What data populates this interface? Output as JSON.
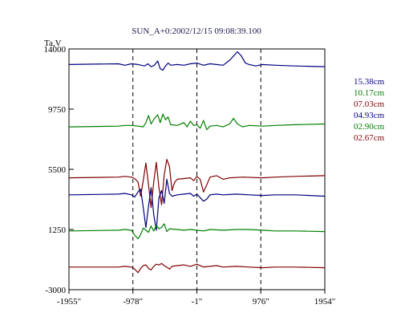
{
  "chart_data": {
    "type": "line",
    "title": "SUN_A+0:2002/12/15 09:08:39.100",
    "ylabel": "Ta,V",
    "xticks": [
      "-1955\"",
      "-978\"",
      "-1\"",
      "976\"",
      "1954\""
    ],
    "xtick_values": [
      -1955,
      -978,
      -1,
      976,
      1954
    ],
    "yticks": [
      "14000",
      "9750",
      "5500",
      "1250",
      "-3000"
    ],
    "ytick_values": [
      14000,
      9750,
      5500,
      1250,
      -3000
    ],
    "xlim": [
      -1955,
      1954
    ],
    "ylim": [
      -3000,
      14000
    ],
    "grid": "dashed vertical lines at -978, -1, 976",
    "legend_position": "right",
    "series": [
      {
        "name": "15.38cm",
        "color": "#00007f",
        "baseline": 12900,
        "x": [
          -1955,
          -1200,
          -1100,
          -1000,
          -900,
          -800,
          -750,
          -700,
          -650,
          -600,
          -560,
          -520,
          -480,
          -440,
          -400,
          -300,
          -200,
          -100,
          0,
          100,
          200,
          300,
          400,
          500,
          560,
          620,
          680,
          740,
          800,
          900,
          1000,
          1200,
          1500,
          1954
        ],
        "y": [
          12900,
          12950,
          12850,
          12950,
          12900,
          12800,
          12950,
          12750,
          12850,
          13150,
          12600,
          12500,
          12800,
          13000,
          12850,
          12900,
          12850,
          12950,
          13000,
          12850,
          12950,
          12900,
          12850,
          13200,
          13500,
          13800,
          13500,
          13000,
          12900,
          12800,
          12900,
          12850,
          12800,
          12750
        ]
      },
      {
        "name": "10.17cm",
        "color": "#007f00",
        "baseline": 8600,
        "x": [
          -1955,
          -1200,
          -1100,
          -1000,
          -900,
          -820,
          -780,
          -740,
          -700,
          -650,
          -600,
          -560,
          -520,
          -480,
          -440,
          -400,
          -300,
          -200,
          -150,
          -100,
          -50,
          0,
          50,
          100,
          150,
          200,
          300,
          400,
          500,
          560,
          620,
          700,
          800,
          1000,
          1200,
          1500,
          1954
        ],
        "y": [
          8500,
          8550,
          8600,
          8600,
          8550,
          8500,
          8800,
          9300,
          8700,
          9100,
          9350,
          8800,
          9400,
          9000,
          9200,
          8650,
          8600,
          8800,
          8500,
          8900,
          8600,
          8650,
          8400,
          8950,
          8300,
          8550,
          8600,
          8500,
          8700,
          9100,
          8700,
          8500,
          8600,
          8550,
          8600,
          8650,
          8700
        ]
      },
      {
        "name": "07.03cm",
        "color": "#7f0000",
        "baseline": 4950,
        "x": [
          -1955,
          -1200,
          -1100,
          -1000,
          -950,
          -900,
          -860,
          -820,
          -780,
          -740,
          -700,
          -660,
          -620,
          -580,
          -540,
          -500,
          -460,
          -420,
          -380,
          -340,
          -300,
          -200,
          -100,
          -50,
          0,
          50,
          100,
          150,
          200,
          300,
          400,
          500,
          700,
          1000,
          1200,
          1500,
          1954
        ],
        "y": [
          4900,
          4950,
          5000,
          4950,
          4850,
          4600,
          3600,
          4700,
          5950,
          4400,
          2800,
          4600,
          6000,
          4200,
          3000,
          5100,
          6200,
          5700,
          4000,
          4600,
          4800,
          4850,
          4900,
          4700,
          5000,
          4800,
          3900,
          4400,
          4950,
          5050,
          4800,
          4900,
          4950,
          4900,
          4950,
          5000,
          5050
        ]
      },
      {
        "name": "04.93cm",
        "color": "#00007f",
        "baseline": 3750,
        "x": [
          -1955,
          -1200,
          -1100,
          -1000,
          -950,
          -900,
          -860,
          -820,
          -780,
          -740,
          -700,
          -660,
          -620,
          -580,
          -540,
          -500,
          -460,
          -420,
          -380,
          -300,
          -200,
          -100,
          -50,
          0,
          50,
          100,
          150,
          200,
          300,
          400,
          600,
          800,
          1000,
          1200,
          1500,
          1954
        ],
        "y": [
          3700,
          3750,
          3800,
          3700,
          3550,
          3900,
          4100,
          2800,
          1400,
          2900,
          4200,
          2300,
          1200,
          3500,
          4000,
          3100,
          4800,
          3800,
          3600,
          3700,
          3750,
          3800,
          3600,
          3750,
          3500,
          3250,
          3400,
          3700,
          3750,
          3700,
          3750,
          3700,
          3650,
          3700,
          3700,
          3600
        ]
      },
      {
        "name": "02.90cm",
        "color": "#007f00",
        "baseline": 1200,
        "x": [
          -1955,
          -1200,
          -1100,
          -1000,
          -950,
          -900,
          -860,
          -820,
          -780,
          -740,
          -700,
          -660,
          -620,
          -580,
          -540,
          -500,
          -460,
          -420,
          -300,
          -200,
          -100,
          0,
          100,
          200,
          400,
          600,
          800,
          1000,
          1200,
          1500,
          1954
        ],
        "y": [
          1150,
          1200,
          1250,
          1200,
          850,
          600,
          900,
          1350,
          1200,
          1050,
          1500,
          1150,
          1550,
          1300,
          1400,
          1650,
          1100,
          1300,
          1250,
          1200,
          1250,
          1200,
          1150,
          1250,
          1200,
          1250,
          1250,
          1200,
          1150,
          1150,
          1100
        ]
      },
      {
        "name": "02.67cm",
        "color": "#7f0000",
        "baseline": -1400,
        "x": [
          -1955,
          -1200,
          -1100,
          -1000,
          -950,
          -900,
          -860,
          -820,
          -780,
          -740,
          -700,
          -660,
          -620,
          -580,
          -540,
          -500,
          -460,
          -420,
          -380,
          -300,
          -200,
          -100,
          0,
          100,
          200,
          300,
          400,
          600,
          800,
          1000,
          1200,
          1500,
          1954
        ],
        "y": [
          -1400,
          -1400,
          -1350,
          -1400,
          -1550,
          -1800,
          -1500,
          -1300,
          -1250,
          -1500,
          -1600,
          -1350,
          -1200,
          -1250,
          -1150,
          -1300,
          -1400,
          -1550,
          -1350,
          -1300,
          -1250,
          -1350,
          -1200,
          -1400,
          -1350,
          -1300,
          -1400,
          -1350,
          -1400,
          -1450,
          -1400,
          -1400,
          -1450
        ]
      }
    ]
  }
}
